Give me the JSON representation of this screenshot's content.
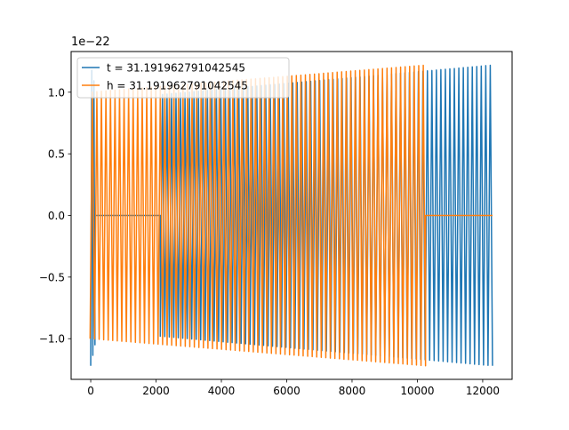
{
  "chart_data": {
    "type": "line",
    "title": "",
    "xlabel": "",
    "ylabel": "",
    "y_offset_text": "1e−22",
    "y_scale_factor": 1e-22,
    "xlim": [
      -600,
      12900
    ],
    "ylim": [
      -1.33,
      1.33
    ],
    "x_ticks": [
      0,
      2000,
      4000,
      6000,
      8000,
      10000,
      12000
    ],
    "x_tick_labels": [
      "0",
      "2000",
      "4000",
      "6000",
      "8000",
      "10000",
      "12000"
    ],
    "y_ticks": [
      1.0,
      0.5,
      0.0,
      -0.5,
      -1.0
    ],
    "y_tick_labels": [
      "1.0",
      "0.5",
      "0.0",
      "−0.5",
      "−1.0"
    ],
    "grid": false,
    "legend_position": "top-left",
    "series": [
      {
        "name": "t = 31.191962791042545",
        "color": "#1f77b4",
        "segments": [
          {
            "kind": "oscillation",
            "x_start": 0,
            "x_end": 130,
            "cycles": 2,
            "amp_start": 1.22,
            "amp_end": 1.05
          },
          {
            "kind": "flat",
            "x_start": 130,
            "x_end": 2130,
            "value": 0
          },
          {
            "kind": "oscillation",
            "x_start": 2130,
            "x_end": 12300,
            "cycles": 74,
            "amp_start": 0.98,
            "amp_end": 1.22
          }
        ]
      },
      {
        "name": "h = 31.191962791042545",
        "color": "#ff7f0e",
        "segments": [
          {
            "kind": "oscillation",
            "x_start": -20,
            "x_end": 10250,
            "cycles": 74,
            "amp_start": 1.0,
            "amp_end": 1.22
          },
          {
            "kind": "flat",
            "x_start": 10250,
            "x_end": 12300,
            "value": 0
          }
        ]
      }
    ]
  }
}
